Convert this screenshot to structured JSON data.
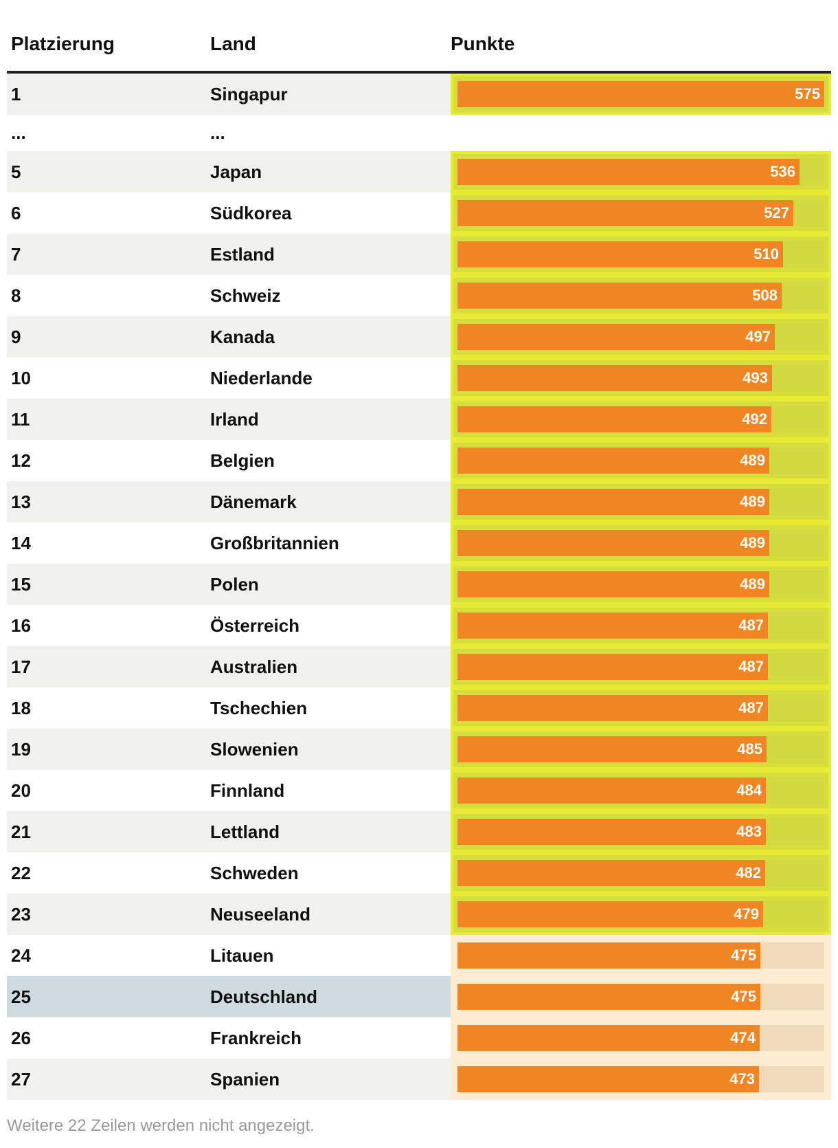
{
  "header": {
    "rank": "Platzierung",
    "country": "Land",
    "points": "Punkte"
  },
  "ellipsis": "...",
  "footnote": "Weitere 22 Zeilen werden nicht angezeigt.",
  "colors": {
    "bar": "#f08523",
    "above_avg_bg": "#d7dd3c",
    "below_avg_bg": "#fdebd2",
    "highlight_row": "#cfdbe1"
  },
  "chart_data": {
    "type": "table",
    "columns": [
      "Platzierung",
      "Land",
      "Punkte"
    ],
    "max_value": 575,
    "rows": [
      {
        "rank": "1",
        "country": "Singapur",
        "points": 575,
        "group": "good"
      },
      {
        "rank": "...",
        "country": "...",
        "points": null,
        "group": "gap"
      },
      {
        "rank": "5",
        "country": "Japan",
        "points": 536,
        "group": "good"
      },
      {
        "rank": "6",
        "country": "Südkorea",
        "points": 527,
        "group": "good"
      },
      {
        "rank": "7",
        "country": "Estland",
        "points": 510,
        "group": "good"
      },
      {
        "rank": "8",
        "country": "Schweiz",
        "points": 508,
        "group": "good"
      },
      {
        "rank": "9",
        "country": "Kanada",
        "points": 497,
        "group": "good"
      },
      {
        "rank": "10",
        "country": "Niederlande",
        "points": 493,
        "group": "good"
      },
      {
        "rank": "11",
        "country": "Irland",
        "points": 492,
        "group": "good"
      },
      {
        "rank": "12",
        "country": "Belgien",
        "points": 489,
        "group": "good"
      },
      {
        "rank": "13",
        "country": "Dänemark",
        "points": 489,
        "group": "good"
      },
      {
        "rank": "14",
        "country": "Großbritannien",
        "points": 489,
        "group": "good"
      },
      {
        "rank": "15",
        "country": "Polen",
        "points": 489,
        "group": "good"
      },
      {
        "rank": "16",
        "country": "Österreich",
        "points": 487,
        "group": "good"
      },
      {
        "rank": "17",
        "country": "Australien",
        "points": 487,
        "group": "good"
      },
      {
        "rank": "18",
        "country": "Tschechien",
        "points": 487,
        "group": "good"
      },
      {
        "rank": "19",
        "country": "Slowenien",
        "points": 485,
        "group": "good"
      },
      {
        "rank": "20",
        "country": "Finnland",
        "points": 484,
        "group": "good"
      },
      {
        "rank": "21",
        "country": "Lettland",
        "points": 483,
        "group": "good"
      },
      {
        "rank": "22",
        "country": "Schweden",
        "points": 482,
        "group": "good"
      },
      {
        "rank": "23",
        "country": "Neuseeland",
        "points": 479,
        "group": "good"
      },
      {
        "rank": "24",
        "country": "Litauen",
        "points": 475,
        "group": "bad"
      },
      {
        "rank": "25",
        "country": "Deutschland",
        "points": 475,
        "group": "bad",
        "highlight": true
      },
      {
        "rank": "26",
        "country": "Frankreich",
        "points": 474,
        "group": "bad"
      },
      {
        "rank": "27",
        "country": "Spanien",
        "points": 473,
        "group": "bad"
      }
    ]
  }
}
